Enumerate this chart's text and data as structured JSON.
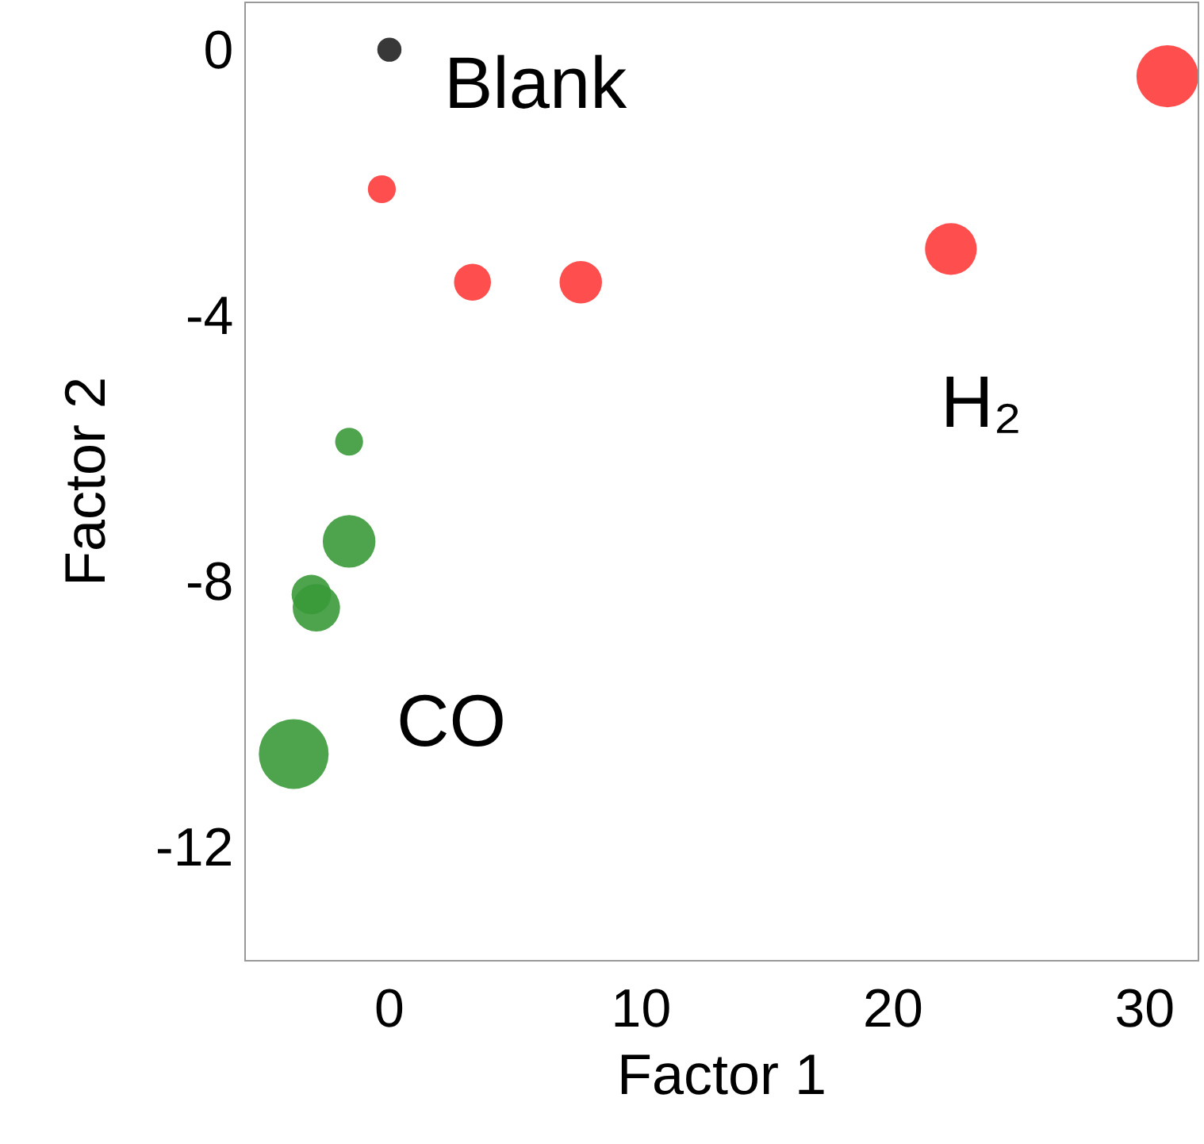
{
  "chart_data": {
    "type": "bubble",
    "xlabel": "Factor 1",
    "ylabel": "Factor 2",
    "xlim": [
      -5.7,
      32.1
    ],
    "xticks": [
      0,
      10,
      20,
      30
    ],
    "ylim": [
      -13.7,
      0.7
    ],
    "yticks": [
      0,
      -4,
      -8,
      -12
    ],
    "grid": false,
    "legend": false,
    "series": [
      {
        "name": "Blank",
        "color": "#222222",
        "x": [
          0
        ],
        "values": [
          0
        ],
        "sizes": [
          0.12
        ]
      },
      {
        "name": "H₂",
        "color": "#ff3b3b",
        "x": [
          -0.3,
          3.3,
          7.6,
          22.3,
          30.9
        ],
        "values": [
          -2.1,
          -3.5,
          -3.5,
          -3.0,
          -0.4
        ],
        "sizes": [
          0.16,
          0.28,
          0.37,
          0.55,
          0.79
        ]
      },
      {
        "name": "CO",
        "color": "#3a9a3a",
        "x": [
          -1.6,
          -1.6,
          -3.1,
          -2.9,
          -3.8
        ],
        "values": [
          -5.9,
          -7.4,
          -8.2,
          -8.4,
          -10.6
        ],
        "sizes": [
          0.16,
          0.57,
          0.32,
          0.46,
          1.0
        ]
      }
    ]
  }
}
